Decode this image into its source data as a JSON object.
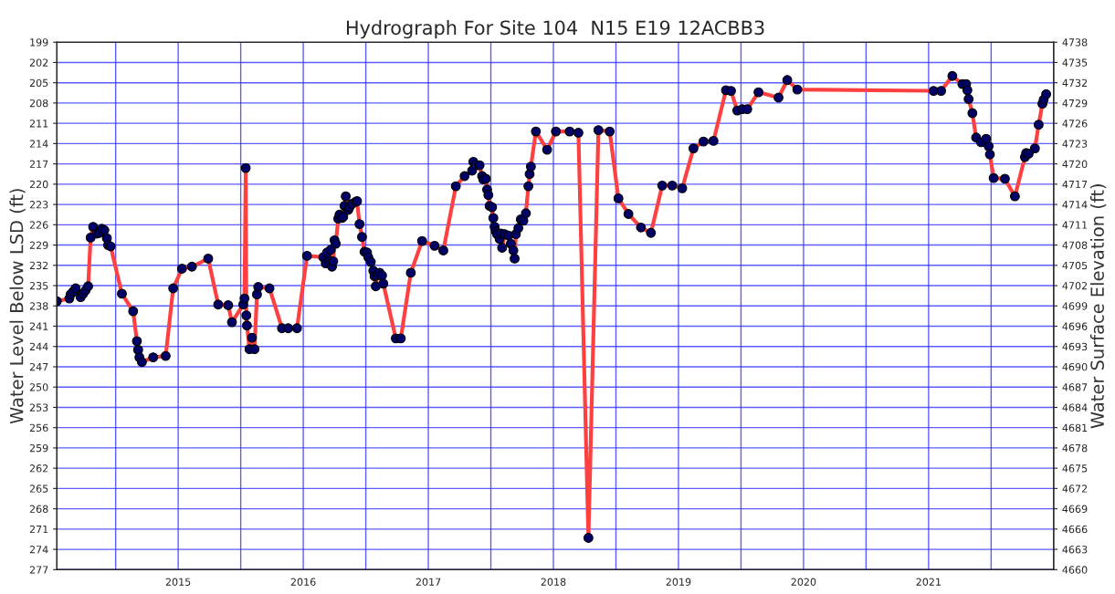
{
  "chart_data": {
    "type": "line",
    "title": "Hydrograph For Site 104  N15 E19 12ACBB3",
    "ylabel": "Water Level Below LSD (ft)",
    "y2label": "Water Surface Elevation (ft)",
    "x": [
      2014.03,
      2014.13,
      2014.14,
      2014.16,
      2014.18,
      2014.22,
      2014.24,
      2014.26,
      2014.28,
      2014.3,
      2014.32,
      2014.35,
      2014.37,
      2014.39,
      2014.41,
      2014.43,
      2014.44,
      2014.46,
      2014.55,
      2014.64,
      2014.67,
      2014.68,
      2014.69,
      2014.71,
      2014.8,
      2014.9,
      2014.96,
      2015.03,
      2015.11,
      2015.24,
      2015.32,
      2015.4,
      2015.43,
      2015.52,
      2015.53,
      2015.54,
      2015.545,
      2015.55,
      2015.57,
      2015.59,
      2015.61,
      2015.63,
      2015.64,
      2015.73,
      2015.83,
      2015.88,
      2015.95,
      2016.03,
      2016.16,
      2016.18,
      2016.19,
      2016.21,
      2016.22,
      2016.23,
      2016.24,
      2016.25,
      2016.26,
      2016.28,
      2016.29,
      2016.31,
      2016.32,
      2016.33,
      2016.34,
      2016.36,
      2016.37,
      2016.39,
      2016.42,
      2016.43,
      2016.45,
      2016.47,
      2016.49,
      2016.51,
      2016.52,
      2016.54,
      2016.56,
      2016.57,
      2016.58,
      2016.59,
      2016.61,
      2016.63,
      2016.64,
      2016.74,
      2016.78,
      2016.86,
      2016.95,
      2017.05,
      2017.12,
      2017.22,
      2017.29,
      2017.35,
      2017.36,
      2017.38,
      2017.41,
      2017.43,
      2017.44,
      2017.46,
      2017.47,
      2017.48,
      2017.49,
      2017.51,
      2017.52,
      2017.53,
      2017.54,
      2017.55,
      2017.57,
      2017.58,
      2017.59,
      2017.61,
      2017.64,
      2017.66,
      2017.68,
      2017.69,
      2017.7,
      2017.72,
      2017.74,
      2017.76,
      2017.78,
      2017.8,
      2017.81,
      2017.82,
      2017.86,
      2017.95,
      2018.02,
      2018.13,
      2018.2,
      2018.28,
      2018.36,
      2018.45,
      2018.52,
      2018.6,
      2018.7,
      2018.78,
      2018.87,
      2018.95,
      2019.03,
      2019.12,
      2019.2,
      2019.28,
      2019.38,
      2019.42,
      2019.47,
      2019.51,
      2019.55,
      2019.64,
      2019.8,
      2019.87,
      2019.95,
      2021.04,
      2021.1,
      2021.19,
      2021.27,
      2021.3,
      2021.31,
      2021.32,
      2021.35,
      2021.38,
      2021.42,
      2021.46,
      2021.48,
      2021.49,
      2021.52,
      2021.61,
      2021.69,
      2021.77,
      2021.78,
      2021.8,
      2021.85,
      2021.88,
      2021.91,
      2021.92,
      2021.94
    ],
    "series": [
      {
        "color": "#ff4040",
        "values": [
          237.3,
          236.9,
          236.3,
          235.9,
          235.4,
          236.7,
          236.2,
          235.7,
          235.1,
          227.9,
          226.3,
          227.3,
          227.2,
          226.6,
          226.8,
          228.0,
          229.0,
          229.2,
          236.2,
          238.8,
          243.2,
          244.5,
          245.6,
          246.3,
          245.6,
          245.4,
          235.4,
          232.5,
          232.2,
          231.0,
          237.8,
          237.9,
          240.4,
          237.8,
          236.9,
          217.6,
          239.4,
          240.9,
          244.4,
          242.7,
          244.4,
          236.3,
          235.2,
          235.4,
          241.3,
          241.3,
          241.3,
          230.6,
          230.8,
          231.7,
          230.1,
          231.3,
          229.7,
          232.2,
          231.4,
          228.3,
          228.8,
          225.1,
          224.5,
          225.0,
          224.8,
          223.2,
          221.8,
          223.8,
          223.4,
          222.9,
          222.6,
          222.5,
          225.9,
          227.8,
          230.0,
          230.1,
          230.8,
          231.5,
          232.8,
          233.6,
          235.1,
          233.5,
          233.1,
          233.5,
          234.7,
          242.8,
          242.8,
          233.1,
          228.4,
          229.1,
          229.8,
          220.3,
          218.8,
          218.0,
          216.7,
          217.2,
          217.2,
          218.8,
          219.3,
          219.2,
          220.8,
          221.6,
          223.2,
          223.4,
          225.0,
          226.3,
          227.0,
          227.4,
          228.1,
          227.3,
          229.4,
          227.4,
          227.6,
          228.8,
          229.8,
          231.0,
          227.4,
          226.5,
          225.2,
          225.4,
          224.3,
          220.3,
          218.5,
          217.4,
          212.2,
          214.9,
          212.2,
          212.2,
          212.4,
          272.3,
          212.0,
          212.2,
          222.1,
          224.4,
          226.4,
          227.2,
          220.2,
          220.2,
          220.6,
          214.7,
          213.7,
          213.6,
          206.1,
          206.2,
          209.1,
          208.9,
          208.9,
          206.4,
          207.2,
          204.6,
          206.0,
          206.2,
          206.2,
          204.0,
          205.2,
          205.2,
          206.1,
          207.4,
          209.5,
          213.1,
          213.8,
          213.3,
          214.4,
          215.6,
          219.1,
          219.2,
          221.8,
          216.0,
          215.4,
          215.5,
          214.7,
          211.2,
          208.1,
          207.5,
          206.7
        ]
      }
    ],
    "marker": "circle",
    "line_style": "solid",
    "grid": true,
    "xlim": [
      2014.03,
      2022.0
    ],
    "xticks": [
      {
        "value": 2014.5,
        "label": null
      },
      2015,
      {
        "value": 2015.5,
        "label": null
      },
      2016,
      {
        "value": 2016.5,
        "label": null
      },
      2017,
      {
        "value": 2017.5,
        "label": null
      },
      2018,
      {
        "value": 2018.5,
        "label": null
      },
      2019,
      {
        "value": 2019.5,
        "label": null
      },
      2020,
      {
        "value": 2020.5,
        "label": null
      },
      2021,
      {
        "value": 2021.5,
        "label": null
      }
    ],
    "ylim": [
      277,
      199
    ],
    "yticks": [
      199,
      202,
      205,
      208,
      211,
      214,
      217,
      220,
      223,
      226,
      229,
      232,
      235,
      238,
      241,
      244,
      247,
      250,
      253,
      256,
      259,
      262,
      265,
      268,
      271,
      274,
      277
    ],
    "y2lim": [
      4660,
      4738
    ],
    "y2ticks": [
      4738,
      4735,
      4732,
      4729,
      4726,
      4723,
      4720,
      4717,
      4714,
      4711,
      4708,
      4705,
      4702,
      4699,
      4696,
      4693,
      4690,
      4687,
      4684,
      4681,
      4678,
      4675,
      4672,
      4669,
      4666,
      4663,
      4660
    ]
  }
}
